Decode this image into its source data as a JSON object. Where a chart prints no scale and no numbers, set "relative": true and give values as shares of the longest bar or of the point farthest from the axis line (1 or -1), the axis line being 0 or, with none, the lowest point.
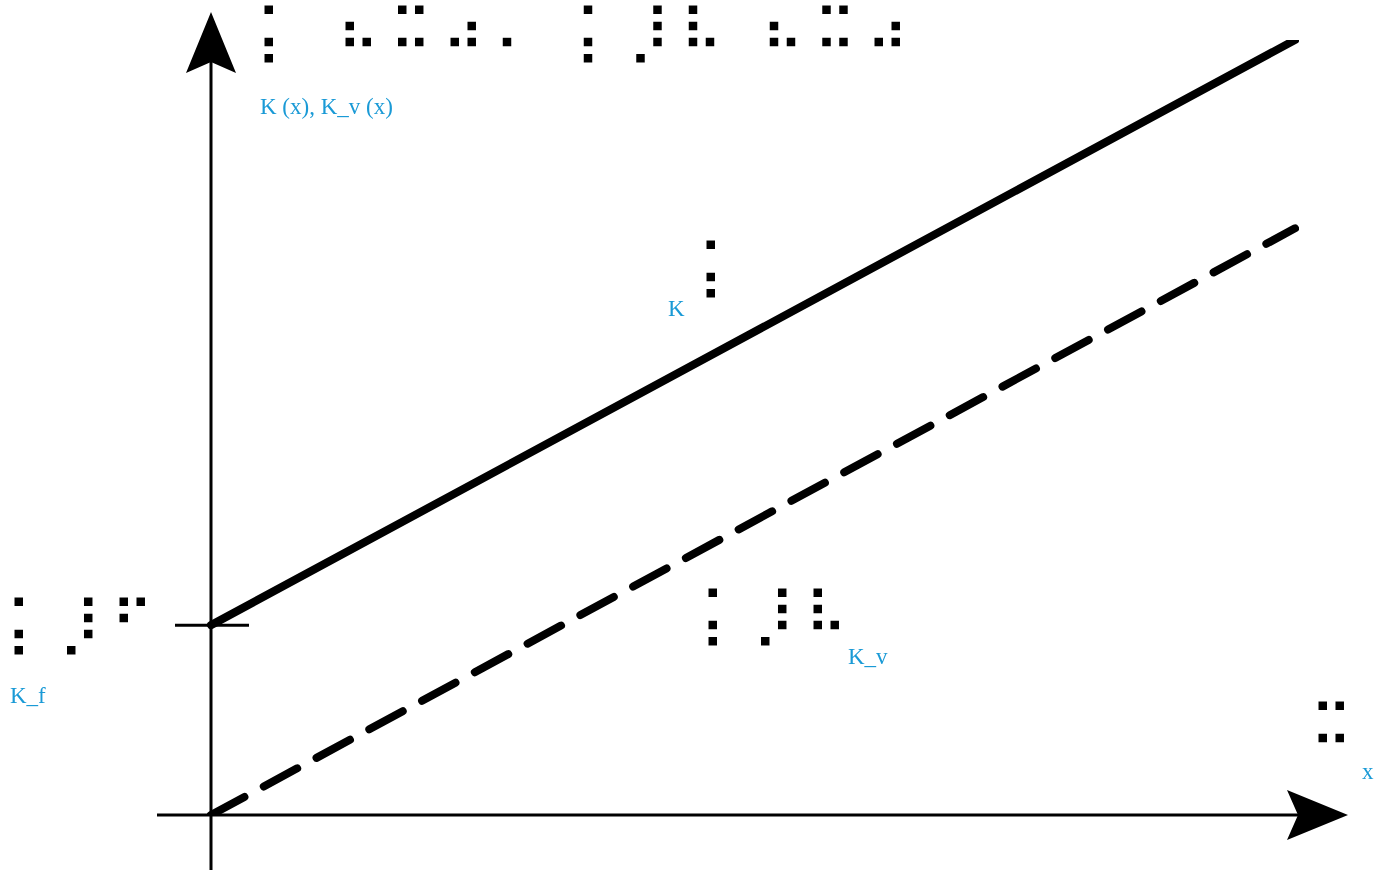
{
  "chart_data": {
    "type": "line",
    "relative": true,
    "ylabel": "⡅ ⠦⠭⠴⠄ ⡅⡸⠧ ⠦⠭⠴",
    "xlabel": "⠭",
    "categories": [
      null,
      null
    ],
    "series": [
      {
        "name": "⡅",
        "color": "#000000",
        "values": [
          0.245,
          1
        ],
        "line_style": "solid"
      },
      {
        "name": "⡅⡸⠧",
        "color": "#000000",
        "values": [
          0,
          0.757
        ],
        "line_style": "dashed"
      }
    ],
    "annotations": [
      "K (x), K_v (x)",
      "x",
      "K",
      "K_v",
      "⡅⡸⠋",
      "K_f"
    ],
    "marker": "none",
    "grid": false,
    "legend": false
  }
}
